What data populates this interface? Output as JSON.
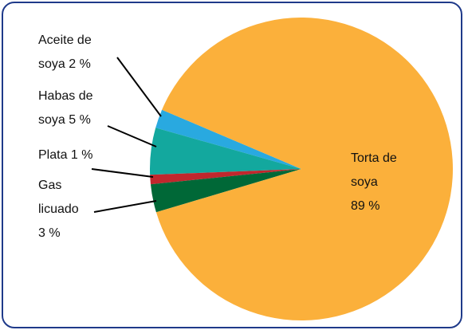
{
  "chart_data": {
    "type": "pie",
    "categories": [
      "Aceite de soya",
      "Habas de soya",
      "Plata",
      "Gas licuado",
      "Torta de soya"
    ],
    "values": [
      2,
      5,
      1,
      3,
      89
    ],
    "value_labels": [
      "2 %",
      "5 %",
      "1 %",
      "3 %",
      "89 %"
    ],
    "colors": [
      "#29a9e0",
      "#13a89e",
      "#c1272d",
      "#006837",
      "#fbb03b"
    ]
  }
}
